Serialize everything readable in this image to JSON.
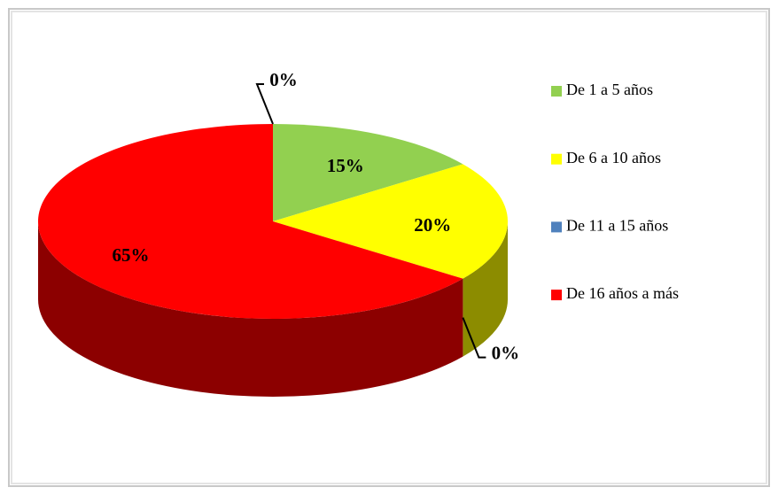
{
  "chart_data": {
    "type": "pie3d",
    "categories": [
      "De 1 a 5 años",
      "De 6 a 10 años",
      "De 11 a 15 años",
      "De 16 años a más",
      null
    ],
    "values": [
      15,
      20,
      0,
      65,
      0
    ],
    "value_labels": [
      "15%",
      "20%",
      "0%",
      "65%",
      "0%"
    ],
    "colors": [
      "#92d050",
      "#ffff00",
      "#4f81bd",
      "#ff0000",
      "#ff0000"
    ],
    "legend": "right"
  }
}
